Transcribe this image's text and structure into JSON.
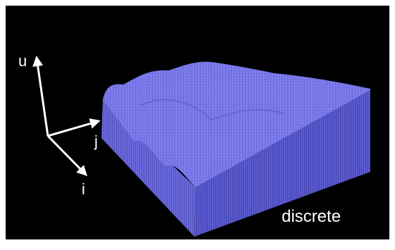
{
  "axes": [
    {
      "label": "u"
    },
    {
      "label": "j"
    },
    {
      "label": "i"
    }
  ],
  "caption": "discrete"
}
